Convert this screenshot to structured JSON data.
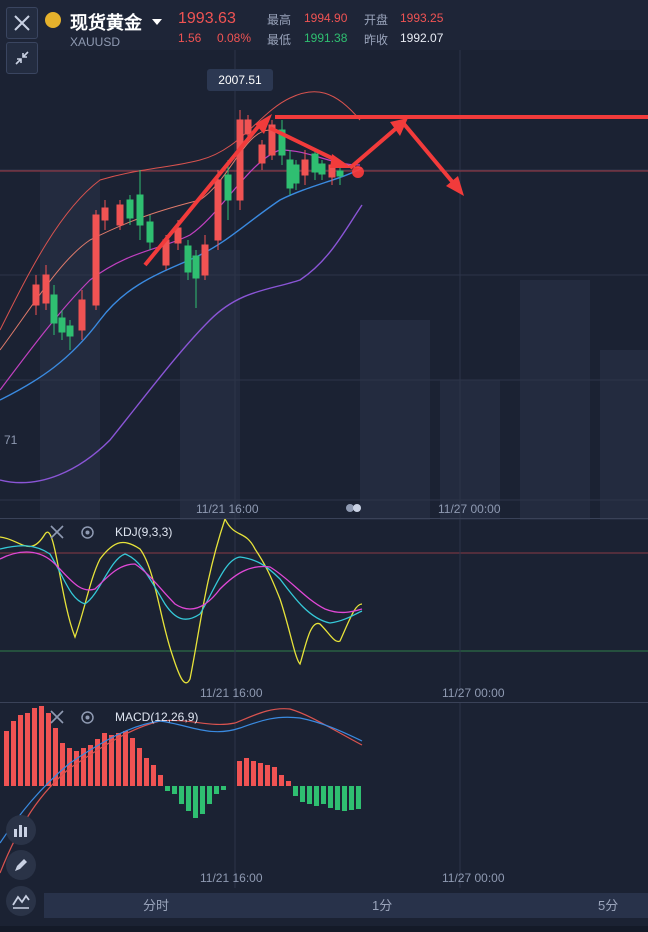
{
  "header": {
    "title": "现货黄金",
    "symbol": "XAUUSD",
    "last_price": "1993.63",
    "change": "1.56",
    "change_pct": "0.08%",
    "high_label": "最高",
    "high_value": "1994.90",
    "low_label": "最低",
    "low_value": "1991.38",
    "open_label": "开盘",
    "open_value": "1993.25",
    "prev_close_label": "昨收",
    "prev_close_value": "1992.07"
  },
  "main_chart": {
    "peak_tag": "2007.51",
    "left_edge_label": "71",
    "time_labels": [
      "11/21 16:00",
      "11/27 00:00"
    ]
  },
  "kdj": {
    "title": "KDJ(9,3,3)",
    "time_labels": [
      "11/21 16:00",
      "11/27 00:00"
    ]
  },
  "macd": {
    "title": "MACD(12,26,9)",
    "time_labels": [
      "11/21 16:00",
      "11/27 00:00"
    ]
  },
  "bottom_tabs": [
    "分时",
    "1分",
    "5分"
  ],
  "colors": {
    "up": "#f05353",
    "down": "#2fbf71",
    "bg": "#1b2233"
  },
  "icons": [
    "close-icon",
    "gold-icon",
    "dropdown-icon",
    "collapse-icon",
    "settings-icon",
    "indicator-icon",
    "pen-icon",
    "trend-icon"
  ]
}
